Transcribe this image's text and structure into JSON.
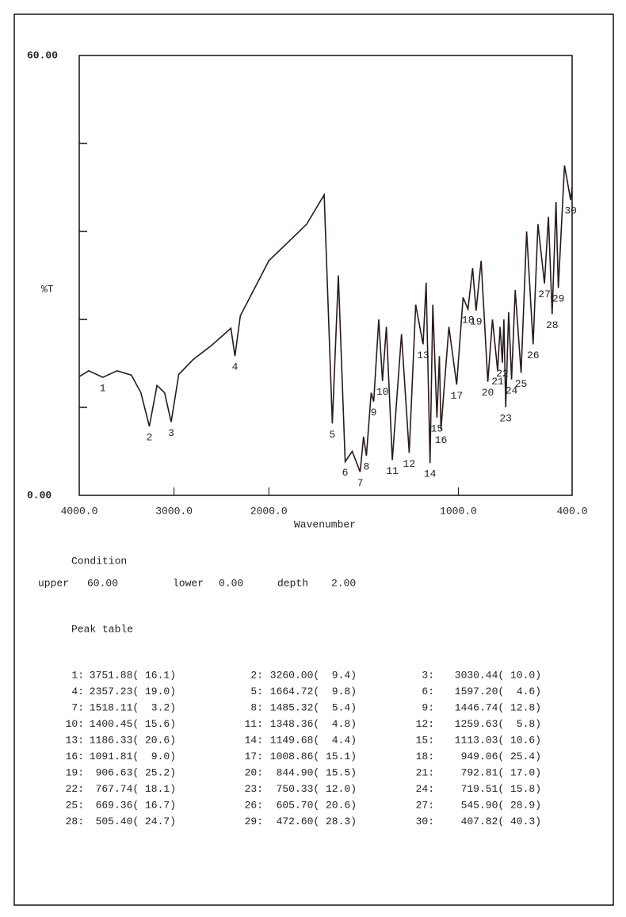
{
  "chart_data": {
    "type": "line",
    "ylabel": "%T",
    "xlabel": "Wavenumber",
    "xlim": [
      4000,
      400
    ],
    "ylim": [
      0,
      60
    ],
    "x_expansion": {
      "below": 2000,
      "factor": 2
    },
    "xticks": [
      {
        "value": 4000,
        "label": "4000.0"
      },
      {
        "value": 3000,
        "label": "3000.0"
      },
      {
        "value": 2000,
        "label": "2000.0"
      },
      {
        "value": 1000,
        "label": "1000.0"
      },
      {
        "value": 400,
        "label": "400.0"
      }
    ],
    "yticks": [
      {
        "value": 0,
        "label": "0.00"
      },
      {
        "value": 60,
        "label": "60.00"
      }
    ],
    "minor_yticks": [
      12,
      24,
      36,
      48
    ],
    "color": "#2a1a1a",
    "x": [
      4000,
      3900,
      3751.88,
      3600,
      3450,
      3350,
      3260,
      3180,
      3100,
      3030.44,
      2950,
      2800,
      2600,
      2400,
      2357.23,
      2300,
      2200,
      2100,
      2000,
      1900,
      1800,
      1708,
      1664.72,
      1633,
      1597.2,
      1560,
      1518.11,
      1500,
      1485.32,
      1460,
      1446.74,
      1420,
      1400.45,
      1380,
      1348.36,
      1300,
      1259.63,
      1225,
      1186.33,
      1170,
      1149.68,
      1135,
      1113.03,
      1100,
      1091.81,
      1050,
      1008.86,
      975,
      949.06,
      925,
      906.63,
      880,
      844.9,
      820,
      792.81,
      780,
      767.74,
      760,
      750.33,
      735,
      719.51,
      700,
      669.36,
      640,
      605.7,
      580,
      545.9,
      525,
      505.4,
      485,
      472.6,
      440,
      407.82,
      400
    ],
    "values": [
      16.2,
      17.0,
      16.1,
      17.0,
      16.4,
      14.0,
      9.4,
      15.0,
      14.0,
      10.0,
      16.5,
      18.5,
      20.5,
      22.8,
      19.0,
      24.5,
      27.0,
      29.5,
      32.0,
      34.5,
      37.0,
      41.0,
      9.8,
      30.0,
      4.6,
      6.0,
      3.2,
      8.0,
      5.4,
      14.0,
      12.8,
      24.0,
      15.6,
      23.0,
      4.8,
      22.0,
      5.8,
      26.0,
      20.6,
      29.0,
      4.4,
      26.0,
      10.6,
      19.0,
      9.0,
      23.0,
      15.1,
      27.0,
      25.4,
      31.0,
      25.2,
      32.0,
      15.5,
      24.0,
      17.0,
      23.0,
      18.1,
      24.0,
      12.0,
      25.0,
      15.8,
      28.0,
      16.7,
      36.0,
      20.6,
      37.0,
      28.9,
      38.0,
      24.7,
      40.0,
      28.3,
      45.0,
      40.3,
      42.0
    ],
    "annotations": [
      {
        "text": "1",
        "x": 3751.88,
        "y": 16.1
      },
      {
        "text": "2",
        "x": 3260,
        "y": 9.4
      },
      {
        "text": "3",
        "x": 3030.44,
        "y": 10.0
      },
      {
        "text": "4",
        "x": 2357.23,
        "y": 19.0
      },
      {
        "text": "5",
        "x": 1664.72,
        "y": 9.8
      },
      {
        "text": "6",
        "x": 1597.2,
        "y": 4.6
      },
      {
        "text": "7",
        "x": 1518.11,
        "y": 3.2
      },
      {
        "text": "8",
        "x": 1485.32,
        "y": 5.4
      },
      {
        "text": "9",
        "x": 1446.74,
        "y": 12.8
      },
      {
        "text": "10",
        "x": 1400.45,
        "y": 15.6
      },
      {
        "text": "11",
        "x": 1348.36,
        "y": 4.8
      },
      {
        "text": "12",
        "x": 1259.63,
        "y": 5.8
      },
      {
        "text": "13",
        "x": 1186.33,
        "y": 20.6
      },
      {
        "text": "14",
        "x": 1149.68,
        "y": 4.4
      },
      {
        "text": "15",
        "x": 1113.03,
        "y": 10.6
      },
      {
        "text": "16",
        "x": 1091.81,
        "y": 9.0
      },
      {
        "text": "17",
        "x": 1008.86,
        "y": 15.1
      },
      {
        "text": "18",
        "x": 949.06,
        "y": 25.4
      },
      {
        "text": "19",
        "x": 906.63,
        "y": 25.2
      },
      {
        "text": "20",
        "x": 844.9,
        "y": 15.5
      },
      {
        "text": "21",
        "x": 792.81,
        "y": 17.0
      },
      {
        "text": "22",
        "x": 767.74,
        "y": 18.1
      },
      {
        "text": "23",
        "x": 750.33,
        "y": 12.0
      },
      {
        "text": "24",
        "x": 719.51,
        "y": 15.8
      },
      {
        "text": "25",
        "x": 669.36,
        "y": 16.7
      },
      {
        "text": "26",
        "x": 605.7,
        "y": 20.6
      },
      {
        "text": "27",
        "x": 545.9,
        "y": 28.9
      },
      {
        "text": "28",
        "x": 505.4,
        "y": 24.7
      },
      {
        "text": "29",
        "x": 472.6,
        "y": 28.3
      },
      {
        "text": "30",
        "x": 407.82,
        "y": 40.3
      }
    ]
  },
  "condition": {
    "title": "Condition",
    "upper_label": "upper",
    "upper": "60.00",
    "lower_label": "lower",
    "lower": "0.00",
    "depth_label": "depth",
    "depth": "2.00"
  },
  "peak_table": {
    "title": "Peak table",
    "entries": [
      {
        "no": "1:",
        "value": "3751.88( 16.1)"
      },
      {
        "no": "2:",
        "value": "3260.00(  9.4)"
      },
      {
        "no": "3:",
        "value": "3030.44( 10.0)"
      },
      {
        "no": "4:",
        "value": "2357.23( 19.0)"
      },
      {
        "no": "5:",
        "value": "1664.72(  9.8)"
      },
      {
        "no": "6:",
        "value": "1597.20(  4.6)"
      },
      {
        "no": "7:",
        "value": "1518.11(  3.2)"
      },
      {
        "no": "8:",
        "value": "1485.32(  5.4)"
      },
      {
        "no": "9:",
        "value": "1446.74( 12.8)"
      },
      {
        "no": "10:",
        "value": "1400.45( 15.6)"
      },
      {
        "no": "11:",
        "value": "1348.36(  4.8)"
      },
      {
        "no": "12:",
        "value": "1259.63(  5.8)"
      },
      {
        "no": "13:",
        "value": "1186.33( 20.6)"
      },
      {
        "no": "14:",
        "value": "1149.68(  4.4)"
      },
      {
        "no": "15:",
        "value": "1113.03( 10.6)"
      },
      {
        "no": "16:",
        "value": "1091.81(  9.0)"
      },
      {
        "no": "17:",
        "value": "1008.86( 15.1)"
      },
      {
        "no": "18:",
        "value": "949.06( 25.4)"
      },
      {
        "no": "19:",
        "value": "906.63( 25.2)"
      },
      {
        "no": "20:",
        "value": "844.90( 15.5)"
      },
      {
        "no": "21:",
        "value": "792.81( 17.0)"
      },
      {
        "no": "22:",
        "value": "767.74( 18.1)"
      },
      {
        "no": "23:",
        "value": "750.33( 12.0)"
      },
      {
        "no": "24:",
        "value": "719.51( 15.8)"
      },
      {
        "no": "25:",
        "value": "669.36( 16.7)"
      },
      {
        "no": "26:",
        "value": "605.70( 20.6)"
      },
      {
        "no": "27:",
        "value": "545.90( 28.9)"
      },
      {
        "no": "28:",
        "value": "505.40( 24.7)"
      },
      {
        "no": "29:",
        "value": "472.60( 28.3)"
      },
      {
        "no": "30:",
        "value": "407.82( 40.3)"
      }
    ]
  }
}
